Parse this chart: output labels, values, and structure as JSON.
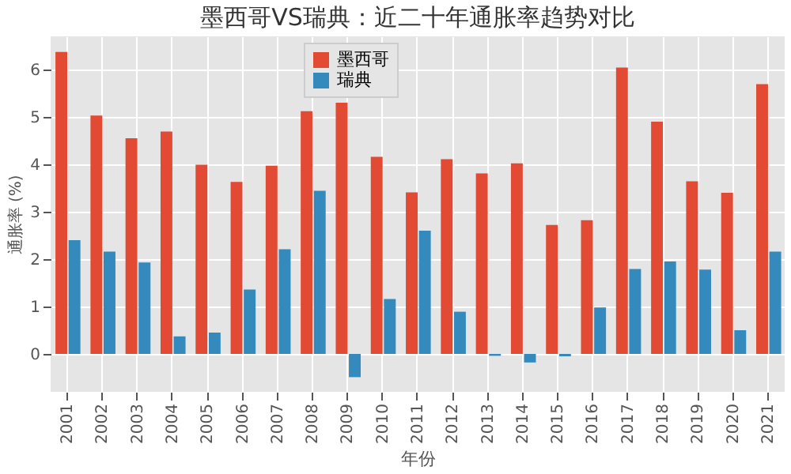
{
  "chart_data": {
    "type": "bar",
    "title": "墨西哥VS瑞典：近二十年通胀率趋势对比",
    "xlabel": "年份",
    "ylabel": "通胀率 (%)",
    "categories": [
      "2001",
      "2002",
      "2003",
      "2004",
      "2005",
      "2006",
      "2007",
      "2008",
      "2009",
      "2010",
      "2011",
      "2012",
      "2013",
      "2014",
      "2015",
      "2016",
      "2017",
      "2018",
      "2019",
      "2020",
      "2021"
    ],
    "series": [
      {
        "name": "墨西哥",
        "color": "#e24a33",
        "values": [
          6.37,
          5.03,
          4.55,
          4.69,
          3.99,
          3.63,
          3.97,
          5.12,
          5.3,
          4.16,
          3.41,
          4.11,
          3.81,
          4.02,
          2.72,
          2.82,
          6.04,
          4.9,
          3.64,
          3.4,
          5.69
        ]
      },
      {
        "name": "瑞典",
        "color": "#348abd",
        "values": [
          2.4,
          2.16,
          1.93,
          0.37,
          0.45,
          1.36,
          2.21,
          3.44,
          -0.49,
          1.16,
          2.6,
          0.89,
          -0.04,
          -0.18,
          -0.05,
          0.98,
          1.79,
          1.95,
          1.78,
          0.5,
          2.16
        ]
      }
    ],
    "ylim": [
      -0.8,
      6.7
    ],
    "yticks": [
      0,
      1,
      2,
      3,
      4,
      5,
      6
    ],
    "grid": true,
    "legend": "top"
  }
}
